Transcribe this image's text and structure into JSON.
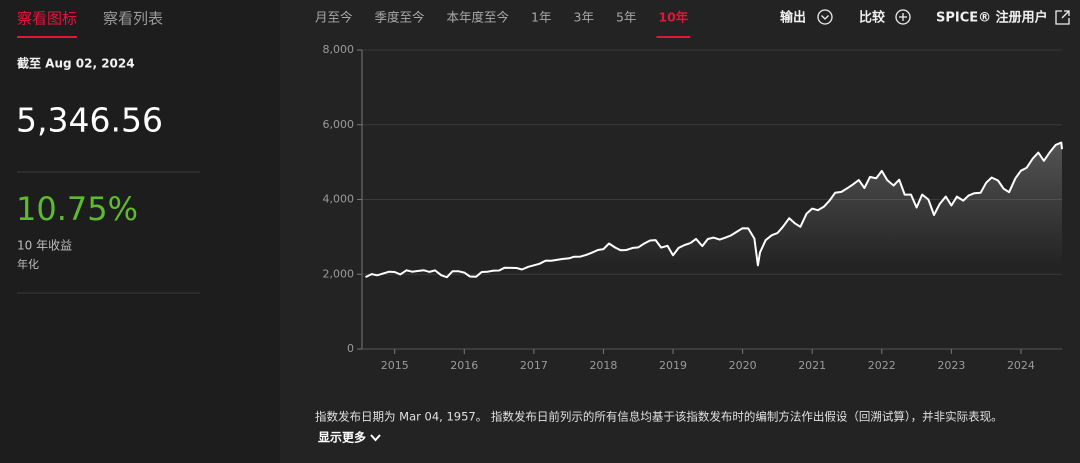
{
  "left_panel": {
    "tabs": [
      {
        "label": "察看图标",
        "active": true
      },
      {
        "label": "察看列表",
        "active": false
      }
    ],
    "as_of": "截至 Aug 02, 2024",
    "level": "5,346.56",
    "return": "10.75%",
    "return_label": "10 年收益",
    "return_note": "年化"
  },
  "top_bar": {
    "ranges": [
      {
        "label": "月至今",
        "active": false
      },
      {
        "label": "季度至今",
        "active": false
      },
      {
        "label": "本年度至今",
        "active": false
      },
      {
        "label": "1年",
        "active": false
      },
      {
        "label": "3年",
        "active": false
      },
      {
        "label": "5年",
        "active": false
      },
      {
        "label": "10年",
        "active": true
      }
    ],
    "actions": [
      "输出",
      "比较",
      "SPICE® 注册用户"
    ]
  },
  "chart_data": {
    "type": "line",
    "color": "#ffffff",
    "grid": true,
    "x": [
      2014.58,
      2014.67,
      2014.75,
      2014.83,
      2014.92,
      2015.0,
      2015.08,
      2015.17,
      2015.25,
      2015.33,
      2015.42,
      2015.5,
      2015.58,
      2015.67,
      2015.75,
      2015.83,
      2015.92,
      2016.0,
      2016.08,
      2016.17,
      2016.25,
      2016.33,
      2016.42,
      2016.5,
      2016.58,
      2016.67,
      2016.75,
      2016.83,
      2016.92,
      2017.0,
      2017.08,
      2017.17,
      2017.25,
      2017.33,
      2017.42,
      2017.5,
      2017.58,
      2017.67,
      2017.75,
      2017.83,
      2017.92,
      2018.0,
      2018.08,
      2018.17,
      2018.25,
      2018.33,
      2018.42,
      2018.5,
      2018.58,
      2018.67,
      2018.75,
      2018.83,
      2018.92,
      2019.0,
      2019.08,
      2019.17,
      2019.25,
      2019.33,
      2019.42,
      2019.5,
      2019.58,
      2019.67,
      2019.75,
      2019.83,
      2019.92,
      2020.0,
      2020.08,
      2020.17,
      2020.22,
      2020.25,
      2020.33,
      2020.42,
      2020.5,
      2020.58,
      2020.67,
      2020.75,
      2020.83,
      2020.92,
      2021.0,
      2021.08,
      2021.17,
      2021.25,
      2021.33,
      2021.42,
      2021.5,
      2021.58,
      2021.67,
      2021.75,
      2021.83,
      2021.92,
      2022.0,
      2022.08,
      2022.17,
      2022.25,
      2022.33,
      2022.42,
      2022.5,
      2022.58,
      2022.67,
      2022.75,
      2022.83,
      2022.92,
      2023.0,
      2023.08,
      2023.17,
      2023.25,
      2023.33,
      2023.42,
      2023.5,
      2023.58,
      2023.67,
      2023.75,
      2023.83,
      2023.92,
      2024.0,
      2024.08,
      2024.17,
      2024.25,
      2024.33,
      2024.42,
      2024.5,
      2024.58,
      2024.59
    ],
    "values": [
      1925,
      2003,
      1972,
      2018,
      2068,
      2059,
      1995,
      2105,
      2068,
      2086,
      2107,
      2063,
      2104,
      1972,
      1920,
      2079,
      2080,
      2044,
      1940,
      1932,
      2060,
      2065,
      2097,
      2099,
      2174,
      2171,
      2168,
      2126,
      2199,
      2239,
      2279,
      2364,
      2363,
      2384,
      2412,
      2423,
      2470,
      2472,
      2519,
      2575,
      2648,
      2674,
      2824,
      2714,
      2641,
      2648,
      2705,
      2718,
      2816,
      2902,
      2914,
      2712,
      2760,
      2507,
      2704,
      2784,
      2834,
      2946,
      2752,
      2942,
      2980,
      2926,
      2977,
      3038,
      3141,
      3231,
      3226,
      2954,
      2237,
      2585,
      2912,
      3044,
      3100,
      3271,
      3500,
      3363,
      3270,
      3622,
      3756,
      3714,
      3811,
      3973,
      4181,
      4204,
      4298,
      4395,
      4523,
      4308,
      4605,
      4567,
      4766,
      4516,
      4374,
      4530,
      4132,
      4132,
      3785,
      4130,
      4000,
      3586,
      3872,
      4080,
      3840,
      4077,
      3970,
      4109,
      4169,
      4180,
      4450,
      4589,
      4508,
      4288,
      4194,
      4568,
      4770,
      4846,
      5096,
      5254,
      5036,
      5278,
      5460,
      5522,
      5347
    ],
    "xlim": [
      2014.53,
      2024.59
    ],
    "xticks": [
      2015,
      2016,
      2017,
      2018,
      2019,
      2020,
      2021,
      2022,
      2023,
      2024
    ],
    "ylim": [
      0,
      8000
    ],
    "yticks": [
      0,
      {
        "value": 2000,
        "label": "2,000"
      },
      {
        "value": 4000,
        "label": "4,000"
      },
      {
        "value": 6000,
        "label": "6,000"
      },
      {
        "value": 8000,
        "label": "8,000"
      }
    ]
  },
  "footer": {
    "note": "指数发布日期为 Mar 04, 1957。 指数发布日前列示的所有信息均基于该指数发布时的编制方法作出假设（回溯试算），并非实际表现。",
    "more": "显示更多"
  }
}
